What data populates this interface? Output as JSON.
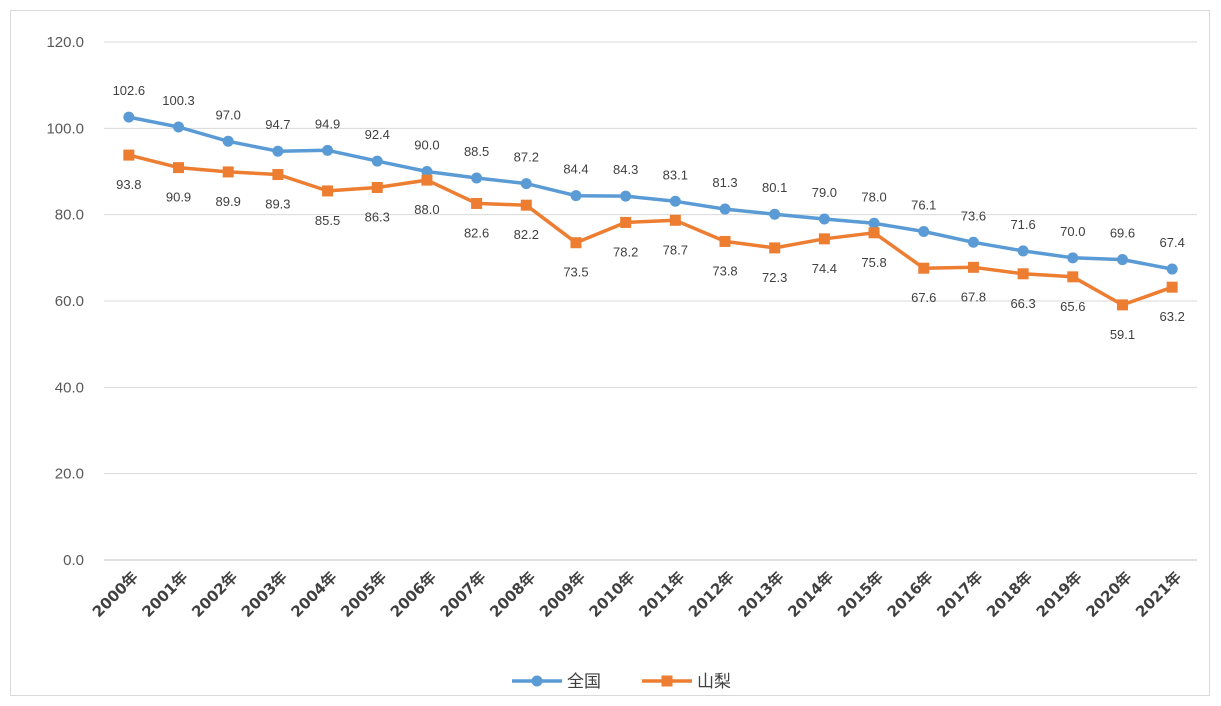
{
  "chart_data": {
    "type": "line",
    "title": "",
    "xlabel": "",
    "ylabel": "",
    "ylim": [
      0,
      120
    ],
    "yticks": [
      0,
      20,
      40,
      60,
      80,
      100,
      120
    ],
    "ytick_labels": [
      "0.0",
      "20.0",
      "40.0",
      "60.0",
      "80.0",
      "100.0",
      "120.0"
    ],
    "grid": true,
    "legend": "bottom",
    "categories": [
      "2000年",
      "2001年",
      "2002年",
      "2003年",
      "2004年",
      "2005年",
      "2006年",
      "2007年",
      "2008年",
      "2009年",
      "2010年",
      "2011年",
      "2012年",
      "2013年",
      "2014年",
      "2015年",
      "2016年",
      "2017年",
      "2018年",
      "2019年",
      "2020年",
      "2021年"
    ],
    "series": [
      {
        "name": "全国",
        "color": "#5b9bd5",
        "marker": "circle",
        "label_position": "above",
        "values": [
          102.6,
          100.3,
          97.0,
          94.7,
          94.9,
          92.4,
          90.0,
          88.5,
          87.2,
          84.4,
          84.3,
          83.1,
          81.3,
          80.1,
          79.0,
          78.0,
          76.1,
          73.6,
          71.6,
          70.0,
          69.6,
          67.4
        ]
      },
      {
        "name": "山梨",
        "color": "#ed7d31",
        "marker": "square",
        "label_position": "below",
        "values": [
          93.8,
          90.9,
          89.9,
          89.3,
          85.5,
          86.3,
          88.0,
          82.6,
          82.2,
          73.5,
          78.2,
          78.7,
          73.8,
          72.3,
          74.4,
          75.8,
          67.6,
          67.8,
          66.3,
          65.6,
          59.1,
          63.2
        ]
      }
    ]
  }
}
